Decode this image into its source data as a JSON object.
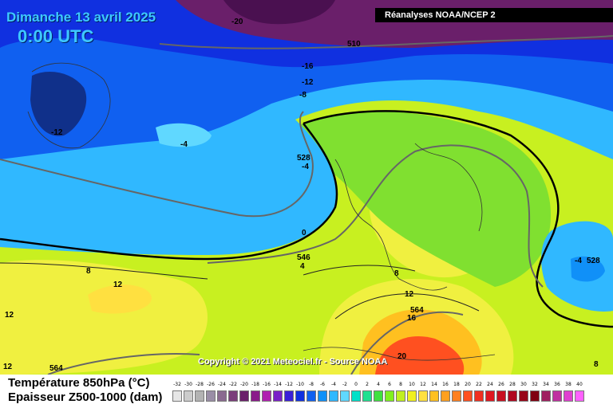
{
  "header": {
    "date": "Dimanche 13 avril 2025",
    "time": "0:00 UTC",
    "source": "Réanalyses NOAA/NCEP 2"
  },
  "footer": {
    "copyright": "Copyright © 2021 Meteociel.fr - Source NOAA"
  },
  "legend": {
    "title_temperature": "Température 850hPa (°C)",
    "title_thickness": "Epaisseur Z500-1000 (dam)",
    "scale": [
      {
        "label": "-32",
        "color": "#e6e6e6"
      },
      {
        "label": "-30",
        "color": "#cccccc"
      },
      {
        "label": "-28",
        "color": "#b3b3b3"
      },
      {
        "label": "-26",
        "color": "#9a8ea6"
      },
      {
        "label": "-24",
        "color": "#8a6a90"
      },
      {
        "label": "-22",
        "color": "#7a3e7a"
      },
      {
        "label": "-20",
        "color": "#6a1f6a"
      },
      {
        "label": "-18",
        "color": "#8a1a8a"
      },
      {
        "label": "-16",
        "color": "#b020b0"
      },
      {
        "label": "-14",
        "color": "#7a20c8"
      },
      {
        "label": "-12",
        "color": "#3a20d8"
      },
      {
        "label": "-10",
        "color": "#1030e0"
      },
      {
        "label": "-8",
        "color": "#1060f0"
      },
      {
        "label": "-6",
        "color": "#1090f8"
      },
      {
        "label": "-4",
        "color": "#30b8ff"
      },
      {
        "label": "-2",
        "color": "#60d8ff"
      },
      {
        "label": "0",
        "color": "#00e0c8"
      },
      {
        "label": "2",
        "color": "#20e090"
      },
      {
        "label": "4",
        "color": "#40e040"
      },
      {
        "label": "6",
        "color": "#80f020"
      },
      {
        "label": "8",
        "color": "#c0f020"
      },
      {
        "label": "10",
        "color": "#f0f020"
      },
      {
        "label": "12",
        "color": "#ffe040"
      },
      {
        "label": "14",
        "color": "#ffc020"
      },
      {
        "label": "16",
        "color": "#ffa020"
      },
      {
        "label": "18",
        "color": "#ff8020"
      },
      {
        "label": "20",
        "color": "#ff5020"
      },
      {
        "label": "22",
        "color": "#f03020"
      },
      {
        "label": "24",
        "color": "#e01820"
      },
      {
        "label": "26",
        "color": "#c81020"
      },
      {
        "label": "28",
        "color": "#b00820"
      },
      {
        "label": "30",
        "color": "#980418"
      },
      {
        "label": "32",
        "color": "#800010"
      },
      {
        "label": "34",
        "color": "#a02060"
      },
      {
        "label": "36",
        "color": "#c030a0"
      },
      {
        "label": "38",
        "color": "#e040d0"
      },
      {
        "label": "40",
        "color": "#ff60ff"
      }
    ]
  },
  "map_labels": [
    {
      "text": "-20"
    },
    {
      "text": "510"
    },
    {
      "text": "-16"
    },
    {
      "text": "-12"
    },
    {
      "text": "-8"
    },
    {
      "text": "-12"
    },
    {
      "text": "-4"
    },
    {
      "text": "528"
    },
    {
      "text": "-4"
    },
    {
      "text": "0"
    },
    {
      "text": "546"
    },
    {
      "text": "4"
    },
    {
      "text": "8"
    },
    {
      "text": "12"
    },
    {
      "text": "12"
    },
    {
      "text": "8"
    },
    {
      "text": "12"
    },
    {
      "text": "564"
    },
    {
      "text": "16"
    },
    {
      "text": "20"
    },
    {
      "text": "-4"
    },
    {
      "text": "528"
    },
    {
      "text": "564"
    },
    {
      "text": "12"
    },
    {
      "text": "8"
    }
  ]
}
